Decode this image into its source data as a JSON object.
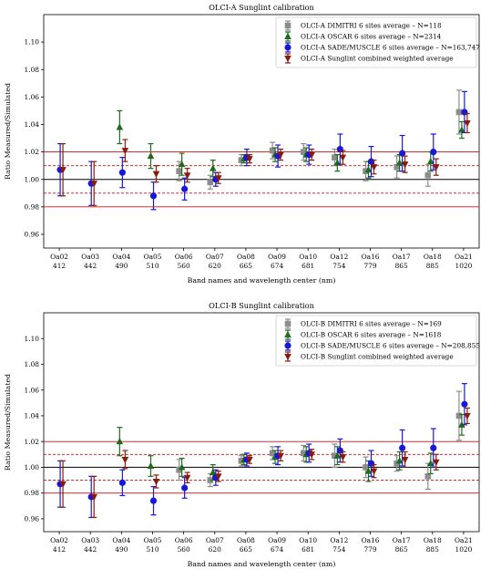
{
  "colors": {
    "dimitri": "#8c8c8c",
    "oscar": "#1e6b1e",
    "sade": "#1818d8",
    "combined": "#8b1a0e",
    "ref_line": "#cc1010",
    "unity_line": "#000000"
  },
  "chart_data": [
    {
      "type": "scatter",
      "title": "OLCI-A Sunglint calibration",
      "xlabel": "Band names and wavelength center (nm)",
      "ylabel": "Ratio Measured/Simulated",
      "ylim": [
        0.95,
        1.12
      ],
      "yticks": [
        "0.96",
        "0.98",
        "1.00",
        "1.02",
        "1.04",
        "1.06",
        "1.08",
        "1.10"
      ],
      "categories": [
        "Oa02",
        "Oa03",
        "Oa04",
        "Oa05",
        "Oa06",
        "Oa07",
        "Oa08",
        "Oa09",
        "Oa10",
        "Oa12",
        "Oa16",
        "Oa17",
        "Oa18",
        "Oa21"
      ],
      "wavelengths": [
        "412",
        "442",
        "490",
        "510",
        "560",
        "620",
        "665",
        "674",
        "681",
        "754",
        "779",
        "865",
        "885",
        "1020"
      ],
      "reference_lines": {
        "solid": [
          1.0
        ],
        "red_solid": [
          0.98,
          1.02
        ],
        "red_dashed": [
          0.99,
          1.01
        ]
      },
      "legend_position": "top-right",
      "series": [
        {
          "name": "OLCI-A DIMITRI 6 sites average – N=118",
          "marker": "square",
          "color_key": "dimitri",
          "values": [
            null,
            null,
            null,
            null,
            1.006,
            0.998,
            1.014,
            1.021,
            1.02,
            1.016,
            1.006,
            1.009,
            1.003,
            1.049
          ],
          "errors": [
            null,
            null,
            null,
            null,
            0.007,
            0.005,
            0.004,
            0.006,
            0.006,
            0.006,
            0.007,
            0.008,
            0.008,
            0.016
          ]
        },
        {
          "name": "OLCI-A OSCAR 6 sites average – N=2314",
          "marker": "triangle-up",
          "color_key": "oscar",
          "values": [
            null,
            null,
            1.038,
            1.017,
            1.011,
            1.008,
            1.015,
            1.018,
            1.018,
            1.012,
            1.007,
            1.012,
            1.013,
            1.036
          ],
          "errors": [
            null,
            null,
            0.012,
            0.009,
            0.008,
            0.006,
            0.003,
            0.005,
            0.005,
            0.006,
            0.006,
            0.006,
            0.007,
            0.006
          ]
        },
        {
          "name": "OLCI-A SADE/MUSCLE 6 sites average – N=163,747",
          "marker": "circle",
          "color_key": "sade",
          "values": [
            1.007,
            0.997,
            1.005,
            0.988,
            0.993,
            1.0,
            1.016,
            1.017,
            1.018,
            1.022,
            1.013,
            1.019,
            1.02,
            1.049
          ],
          "errors": [
            0.019,
            0.016,
            0.011,
            0.01,
            0.008,
            0.005,
            0.006,
            0.008,
            0.007,
            0.011,
            0.011,
            0.013,
            0.013,
            0.015
          ]
        },
        {
          "name": "OLCI-A Sunglint combined weighted average",
          "marker": "triangle-down",
          "color_key": "combined",
          "values": [
            1.007,
            0.997,
            1.021,
            1.004,
            1.003,
            1.001,
            1.015,
            1.018,
            1.018,
            1.016,
            1.009,
            1.011,
            1.009,
            1.041
          ],
          "errors": [
            0.019,
            0.016,
            0.008,
            0.006,
            0.005,
            0.004,
            0.003,
            0.004,
            0.004,
            0.005,
            0.005,
            0.006,
            0.006,
            0.007
          ]
        }
      ]
    },
    {
      "type": "scatter",
      "title": "OLCI-B Sunglint calibration",
      "xlabel": "Band names and wavelength center (nm)",
      "ylabel": "Ratio Measured/Simulated",
      "ylim": [
        0.95,
        1.12
      ],
      "yticks": [
        "0.96",
        "0.98",
        "1.00",
        "1.02",
        "1.04",
        "1.06",
        "1.08",
        "1.10"
      ],
      "categories": [
        "Oa02",
        "Oa03",
        "Oa04",
        "Oa05",
        "Oa06",
        "Oa07",
        "Oa08",
        "Oa09",
        "Oa10",
        "Oa12",
        "Oa16",
        "Oa17",
        "Oa18",
        "Oa21"
      ],
      "wavelengths": [
        "412",
        "442",
        "490",
        "510",
        "560",
        "620",
        "665",
        "674",
        "681",
        "754",
        "779",
        "865",
        "885",
        "1020"
      ],
      "reference_lines": {
        "solid": [
          1.0
        ],
        "red_solid": [
          0.98,
          1.02
        ],
        "red_dashed": [
          0.99,
          1.01
        ]
      },
      "legend_position": "top-right",
      "series": [
        {
          "name": "OLCI-B DIMITRI 6 sites average – N=169",
          "marker": "square",
          "color_key": "dimitri",
          "values": [
            null,
            null,
            null,
            null,
            0.998,
            0.99,
            1.005,
            1.011,
            1.011,
            1.009,
            1.0,
            1.003,
            0.993,
            1.04
          ],
          "errors": [
            null,
            null,
            null,
            null,
            0.008,
            0.005,
            0.004,
            0.005,
            0.006,
            0.009,
            0.008,
            0.006,
            0.01,
            0.019
          ]
        },
        {
          "name": "OLCI-B OSCAR 6 sites average – N=1618",
          "marker": "triangle-up",
          "color_key": "oscar",
          "values": [
            null,
            null,
            1.02,
            1.001,
            1.0,
            0.996,
            1.006,
            1.008,
            1.01,
            1.009,
            0.997,
            1.005,
            1.003,
            1.033
          ],
          "errors": [
            null,
            null,
            0.011,
            0.008,
            0.007,
            0.006,
            0.004,
            0.005,
            0.006,
            0.007,
            0.008,
            0.007,
            0.008,
            0.008
          ]
        },
        {
          "name": "OLCI-B SADE/MUSCLE 6 sites average – N=208,855",
          "marker": "circle",
          "color_key": "sade",
          "values": [
            0.987,
            0.977,
            0.988,
            0.974,
            0.984,
            0.992,
            1.006,
            1.009,
            1.011,
            1.013,
            1.003,
            1.015,
            1.015,
            1.049
          ],
          "errors": [
            0.018,
            0.016,
            0.01,
            0.011,
            0.008,
            0.006,
            0.005,
            0.007,
            0.007,
            0.009,
            0.01,
            0.014,
            0.015,
            0.016
          ]
        },
        {
          "name": "OLCI-B Sunglint combined weighted average",
          "marker": "triangle-down",
          "color_key": "combined",
          "values": [
            0.987,
            0.977,
            1.006,
            0.989,
            0.992,
            0.993,
            1.006,
            1.009,
            1.01,
            1.008,
            0.997,
            1.006,
            1.004,
            1.04
          ],
          "errors": [
            0.018,
            0.016,
            0.007,
            0.005,
            0.004,
            0.004,
            0.003,
            0.004,
            0.004,
            0.004,
            0.005,
            0.006,
            0.006,
            0.006
          ]
        }
      ]
    }
  ]
}
